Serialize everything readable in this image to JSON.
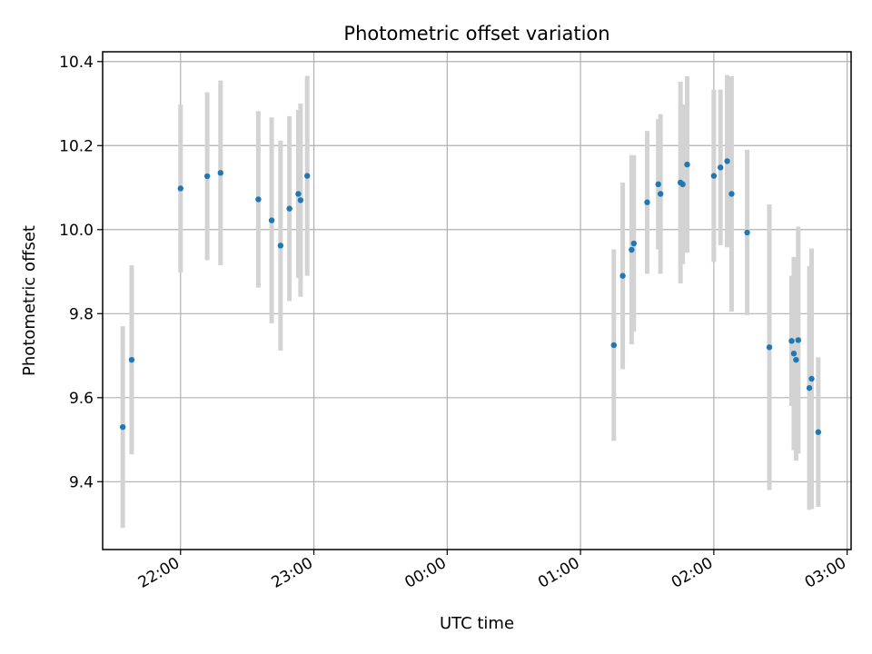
{
  "chart_data": {
    "type": "scatter",
    "title": "Photometric offset variation",
    "xlabel": "UTC time",
    "ylabel": "Photometric offset",
    "grid": true,
    "x_ticks": [
      "22:00",
      "23:00",
      "00:00",
      "01:00",
      "02:00",
      "03:00"
    ],
    "x_tick_hours": [
      22,
      23,
      24,
      25,
      26,
      27
    ],
    "y_ticks": [
      "9.4",
      "9.6",
      "9.8",
      "10.0",
      "10.2",
      "10.4"
    ],
    "xlim_hours": [
      21.4156,
      27.0297
    ],
    "ylim": [
      9.2385,
      10.4233
    ],
    "points": [
      {
        "time": "21:34",
        "y": 9.53,
        "err": 0.24
      },
      {
        "time": "21:38",
        "y": 9.69,
        "err": 0.225
      },
      {
        "time": "22:00",
        "y": 10.098,
        "err": 0.2
      },
      {
        "time": "22:12",
        "y": 10.127,
        "err": 0.2
      },
      {
        "time": "22:18",
        "y": 10.135,
        "err": 0.22
      },
      {
        "time": "22:35",
        "y": 10.072,
        "err": 0.21
      },
      {
        "time": "22:41",
        "y": 10.022,
        "err": 0.245
      },
      {
        "time": "22:45",
        "y": 9.962,
        "err": 0.25
      },
      {
        "time": "22:49",
        "y": 10.05,
        "err": 0.22
      },
      {
        "time": "22:53",
        "y": 10.085,
        "err": 0.2
      },
      {
        "time": "22:54",
        "y": 10.07,
        "err": 0.23
      },
      {
        "time": "22:57",
        "y": 10.128,
        "err": 0.238
      },
      {
        "time": "01:15",
        "y": 9.725,
        "err": 0.228
      },
      {
        "time": "01:19",
        "y": 9.89,
        "err": 0.222
      },
      {
        "time": "01:23",
        "y": 9.952,
        "err": 0.225
      },
      {
        "time": "01:24",
        "y": 9.967,
        "err": 0.21
      },
      {
        "time": "01:30",
        "y": 10.065,
        "err": 0.17
      },
      {
        "time": "01:35",
        "y": 10.108,
        "err": 0.155
      },
      {
        "time": "01:36",
        "y": 10.085,
        "err": 0.19
      },
      {
        "time": "01:45",
        "y": 10.112,
        "err": 0.24
      },
      {
        "time": "01:46",
        "y": 10.108,
        "err": 0.19
      },
      {
        "time": "01:48",
        "y": 10.155,
        "err": 0.21
      },
      {
        "time": "02:00",
        "y": 10.128,
        "err": 0.205
      },
      {
        "time": "02:03",
        "y": 10.148,
        "err": 0.185
      },
      {
        "time": "02:06",
        "y": 10.163,
        "err": 0.205
      },
      {
        "time": "02:08",
        "y": 10.085,
        "err": 0.28
      },
      {
        "time": "02:15",
        "y": 9.993,
        "err": 0.197
      },
      {
        "time": "02:25",
        "y": 9.72,
        "err": 0.34
      },
      {
        "time": "02:35",
        "y": 9.735,
        "err": 0.155
      },
      {
        "time": "02:36",
        "y": 9.705,
        "err": 0.23
      },
      {
        "time": "02:37",
        "y": 9.69,
        "err": 0.24
      },
      {
        "time": "02:38",
        "y": 9.737,
        "err": 0.27
      },
      {
        "time": "02:43",
        "y": 9.623,
        "err": 0.29
      },
      {
        "time": "02:44",
        "y": 9.645,
        "err": 0.31
      },
      {
        "time": "02:47",
        "y": 9.518,
        "err": 0.178
      }
    ],
    "colors": {
      "marker": "#1f77b4",
      "errorbar": "#d3d3d3",
      "grid": "#b0b0b0",
      "axis": "#000000"
    }
  }
}
